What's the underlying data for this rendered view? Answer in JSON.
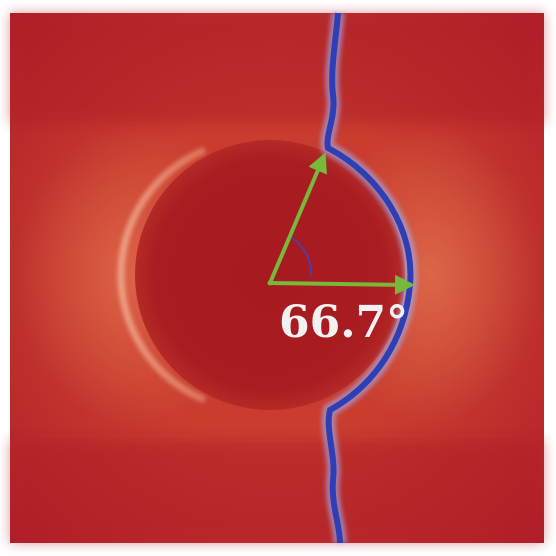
{
  "angle_label": "66.7°",
  "colors": {
    "field_red": "#b11e24",
    "field_orange": "#d9573e",
    "inclusion_red": "#a81a20",
    "crack_blue": "#2d3fb6",
    "crack_glow": "#9fb8ff",
    "arrow_green": "#78b83b",
    "arc_blue": "#3547c8",
    "label_white": "#f2f2f2"
  }
}
